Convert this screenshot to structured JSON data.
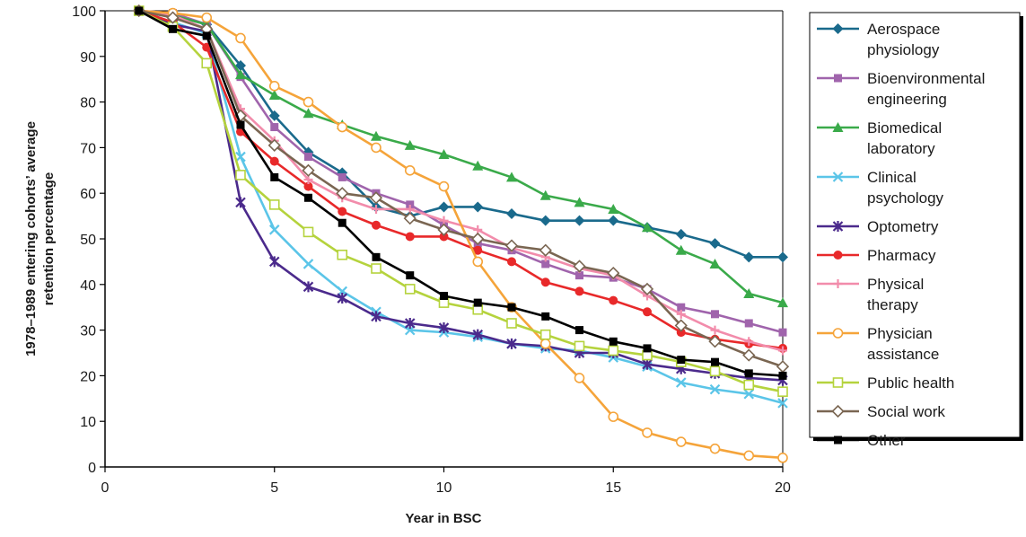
{
  "chart_data": {
    "type": "line",
    "xlabel": "Year in BSC",
    "ylabel_lines": [
      "1978–1989 entering cohorts’ average",
      "retention percentage"
    ],
    "xlim": [
      0,
      20
    ],
    "ylim": [
      0,
      100
    ],
    "x_ticks": [
      0,
      5,
      10,
      15,
      20
    ],
    "y_ticks": [
      0,
      10,
      20,
      30,
      40,
      50,
      60,
      70,
      80,
      90,
      100
    ],
    "grid": false,
    "legend_position": "right",
    "x": [
      1,
      2,
      3,
      4,
      5,
      6,
      7,
      8,
      9,
      10,
      11,
      12,
      13,
      14,
      15,
      16,
      17,
      18,
      19,
      20
    ],
    "series": [
      {
        "label_lines": [
          "Aerospace",
          "physiology"
        ],
        "color": "#1a6a8c",
        "marker": "diamond",
        "values": [
          100,
          99,
          97,
          88,
          77,
          69,
          64.5,
          57,
          55,
          57,
          57,
          55.5,
          54,
          54,
          54,
          52.5,
          51,
          49,
          46,
          46
        ]
      },
      {
        "label_lines": [
          "Bioenvironmental",
          "engineering"
        ],
        "color": "#a064ac",
        "marker": "square",
        "values": [
          100,
          99.5,
          97,
          85.5,
          74.5,
          68,
          63.5,
          60,
          57.5,
          53,
          49,
          47.5,
          44.5,
          42,
          41.5,
          39,
          35,
          33.5,
          31.5,
          29.5
        ]
      },
      {
        "label_lines": [
          "Biomedical",
          "laboratory"
        ],
        "color": "#3aaa4a",
        "marker": "triangle",
        "values": [
          100,
          99,
          97,
          86,
          81.5,
          77.5,
          75,
          72.5,
          70.5,
          68.5,
          66,
          63.5,
          59.5,
          58,
          56.5,
          52.5,
          47.5,
          44.5,
          38,
          36
        ]
      },
      {
        "label_lines": [
          "Clinical",
          "psychology"
        ],
        "color": "#5bc5e8",
        "marker": "x",
        "values": [
          100,
          97.5,
          95,
          68,
          52,
          44.5,
          38.5,
          34,
          30,
          29.5,
          28.5,
          27,
          26,
          25.5,
          24,
          22,
          18.5,
          17,
          16,
          14
        ]
      },
      {
        "label_lines": [
          "Optometry"
        ],
        "color": "#4b2a8c",
        "marker": "star",
        "values": [
          100,
          97,
          95.5,
          58,
          45,
          39.5,
          37,
          33,
          31.5,
          30.5,
          29,
          27,
          26.5,
          25,
          25,
          22.5,
          21.5,
          20.5,
          19.5,
          19
        ]
      },
      {
        "label_lines": [
          "Pharmacy"
        ],
        "color": "#e8292a",
        "marker": "circle",
        "values": [
          100,
          97.5,
          92,
          73.5,
          67,
          61.5,
          56,
          53,
          50.5,
          50.5,
          47.5,
          45,
          40.5,
          38.5,
          36.5,
          34,
          29.5,
          28,
          27,
          26
        ]
      },
      {
        "label_lines": [
          "Physical",
          "therapy"
        ],
        "color": "#f28cab",
        "marker": "plus",
        "values": [
          100,
          99,
          96,
          78.5,
          71.5,
          63,
          59,
          56.5,
          56.5,
          54,
          52,
          48,
          46,
          43.5,
          42,
          37.5,
          33.5,
          30,
          27.5,
          25.5
        ]
      },
      {
        "label_lines": [
          "Physician",
          "assistance"
        ],
        "color": "#f5a43a",
        "marker": "circle-open",
        "values": [
          100,
          99.5,
          98.5,
          94,
          83.5,
          80,
          74.5,
          70,
          65,
          61.5,
          45,
          35,
          27,
          19.5,
          11,
          7.5,
          5.5,
          4,
          2.5,
          2
        ]
      },
      {
        "label_lines": [
          "Public health"
        ],
        "color": "#b5d33d",
        "marker": "square-open",
        "values": [
          100,
          96.5,
          88.5,
          64,
          57.5,
          51.5,
          46.5,
          43.5,
          39,
          36,
          34.5,
          31.5,
          29,
          26.5,
          25.5,
          24.5,
          23,
          21,
          18,
          16.5
        ]
      },
      {
        "label_lines": [
          "Social work"
        ],
        "color": "#7a6652",
        "marker": "diamond-open",
        "values": [
          100,
          98.5,
          96,
          77,
          70.5,
          65,
          60,
          59,
          54.5,
          52,
          50,
          48.5,
          47.5,
          44,
          42.5,
          39,
          31,
          27.5,
          24.5,
          22
        ]
      },
      {
        "label_lines": [
          "Other"
        ],
        "color": "#000000",
        "marker": "square",
        "values": [
          100,
          96,
          94.5,
          75,
          63.5,
          59,
          53.5,
          46,
          42,
          37.5,
          36,
          35,
          33,
          30,
          27.5,
          26,
          23.5,
          23,
          20.5,
          20
        ]
      }
    ]
  }
}
